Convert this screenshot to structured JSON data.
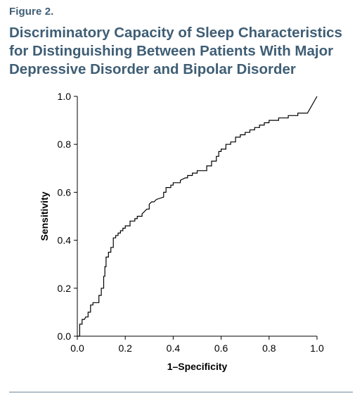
{
  "figure": {
    "label": "Figure 2.",
    "title_lines": [
      "Discriminatory Capacity of Sleep Characteristics",
      "for Distinguishing Between Patients With Major",
      "Depressive Disorder and Bipolar Disorder"
    ],
    "accent_color": "#3f5e75"
  },
  "chart_data": {
    "type": "line",
    "title": "Discriminatory Capacity of Sleep Characteristics for Distinguishing Between Patients With Major Depressive Disorder and Bipolar Disorder",
    "xlabel": "1–Specificity",
    "ylabel": "Sensitivity",
    "xlim": [
      0,
      1
    ],
    "ylim": [
      0,
      1
    ],
    "x_ticks": [
      "0.0",
      "0.2",
      "0.4",
      "0.6",
      "0.8",
      "1.0"
    ],
    "y_ticks": [
      "0.0",
      "0.2",
      "0.4",
      "0.6",
      "0.8",
      "1.0"
    ],
    "grid": false,
    "legend": "none",
    "line_color": "#000000",
    "series": [
      {
        "x": [
          0.0,
          0.01,
          0.01,
          0.02,
          0.02,
          0.03,
          0.035,
          0.045,
          0.045,
          0.055,
          0.055,
          0.065,
          0.065,
          0.09,
          0.09,
          0.1,
          0.1,
          0.11,
          0.11,
          0.115,
          0.115,
          0.12,
          0.12,
          0.13,
          0.13,
          0.14,
          0.14,
          0.15,
          0.15,
          0.16,
          0.16,
          0.17,
          0.17,
          0.18,
          0.18,
          0.19,
          0.19,
          0.2,
          0.2,
          0.22,
          0.22,
          0.24,
          0.24,
          0.25,
          0.25,
          0.27,
          0.27,
          0.29,
          0.3,
          0.3,
          0.31,
          0.32,
          0.33,
          0.33,
          0.36,
          0.36,
          0.37,
          0.37,
          0.39,
          0.39,
          0.4,
          0.4,
          0.43,
          0.43,
          0.45,
          0.46,
          0.46,
          0.48,
          0.48,
          0.5,
          0.5,
          0.54,
          0.54,
          0.56,
          0.56,
          0.58,
          0.58,
          0.59,
          0.59,
          0.6,
          0.6,
          0.62,
          0.62,
          0.64,
          0.64,
          0.66,
          0.66,
          0.68,
          0.68,
          0.7,
          0.7,
          0.72,
          0.72,
          0.74,
          0.74,
          0.76,
          0.76,
          0.78,
          0.78,
          0.8,
          0.8,
          0.84,
          0.84,
          0.88,
          0.88,
          0.92,
          0.92,
          0.96,
          1.0
        ],
        "y": [
          0.0,
          0.0,
          0.05,
          0.05,
          0.07,
          0.07,
          0.08,
          0.08,
          0.1,
          0.1,
          0.13,
          0.13,
          0.14,
          0.14,
          0.17,
          0.17,
          0.2,
          0.2,
          0.25,
          0.25,
          0.29,
          0.29,
          0.33,
          0.33,
          0.35,
          0.35,
          0.37,
          0.37,
          0.41,
          0.41,
          0.42,
          0.42,
          0.43,
          0.43,
          0.44,
          0.44,
          0.45,
          0.45,
          0.46,
          0.46,
          0.48,
          0.48,
          0.49,
          0.49,
          0.5,
          0.5,
          0.51,
          0.53,
          0.53,
          0.55,
          0.56,
          0.56,
          0.57,
          0.57,
          0.58,
          0.6,
          0.6,
          0.62,
          0.62,
          0.63,
          0.63,
          0.64,
          0.64,
          0.65,
          0.66,
          0.66,
          0.67,
          0.67,
          0.68,
          0.68,
          0.69,
          0.69,
          0.71,
          0.71,
          0.73,
          0.73,
          0.75,
          0.75,
          0.77,
          0.77,
          0.78,
          0.78,
          0.8,
          0.8,
          0.81,
          0.81,
          0.83,
          0.83,
          0.84,
          0.84,
          0.85,
          0.85,
          0.86,
          0.86,
          0.87,
          0.87,
          0.88,
          0.88,
          0.89,
          0.89,
          0.9,
          0.9,
          0.91,
          0.91,
          0.92,
          0.92,
          0.93,
          0.93,
          1.0
        ]
      }
    ]
  }
}
